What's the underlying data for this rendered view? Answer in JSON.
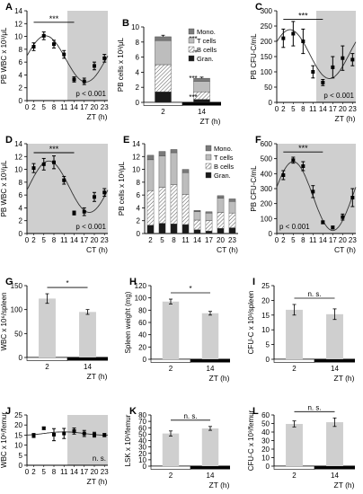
{
  "chart_data": [
    {
      "panel": "A",
      "type": "line",
      "ylabel": "PB WBC x 10³/μL",
      "xlabel": "ZT (h)",
      "ylim": [
        0,
        14
      ],
      "yticks": [
        0,
        2,
        4,
        6,
        8,
        10,
        12,
        14
      ],
      "xlim": [
        0,
        24
      ],
      "xticks": [
        0,
        2,
        5,
        8,
        11,
        14,
        17,
        20,
        23
      ],
      "shade": [
        [
          12,
          24
        ]
      ],
      "light_bar": false,
      "x": [
        2,
        5,
        8,
        11,
        14,
        17,
        20,
        23
      ],
      "y": [
        8.4,
        10.1,
        8.8,
        7.2,
        3.3,
        3.0,
        5.4,
        6.6
      ],
      "err": [
        0.6,
        0.6,
        0.6,
        0.6,
        0.4,
        0.5,
        0.6,
        0.6
      ],
      "curve": {
        "mean": 6.5,
        "amp": 3.6,
        "peak": 5.5,
        "period": 24
      },
      "sig": {
        "label": "***",
        "x1": 2,
        "x2": 14,
        "y": 12.2
      },
      "pval": "p < 0.001",
      "pval_pos": "bottom-right"
    },
    {
      "panel": "B",
      "type": "bar",
      "ylabel": "PB cells x 10³/μL",
      "xlabel": "ZT (h)",
      "ylim": [
        0,
        10
      ],
      "yticks": [
        0,
        2,
        4,
        6,
        8,
        10
      ],
      "categories": [
        "2",
        "14"
      ],
      "stack_order": [
        "Gran.",
        "B cells",
        "T cells",
        "Mono."
      ],
      "legend": [
        "Mono.",
        "T cells",
        "B cells",
        "Gran."
      ],
      "legend_pos": "top-right",
      "series": [
        {
          "name": "Gran.",
          "values": [
            1.4,
            0.4
          ]
        },
        {
          "name": "B cells",
          "values": [
            3.6,
            1.0
          ]
        },
        {
          "name": "T cells",
          "values": [
            3.2,
            1.4
          ]
        },
        {
          "name": "Mono.",
          "values": [
            0.5,
            0.4
          ]
        }
      ],
      "total_err": [
        0.2,
        0.15
      ],
      "stars": [
        "***",
        "***",
        "***",
        "***"
      ],
      "light_bar": true
    },
    {
      "panel": "C",
      "type": "line",
      "ylabel": "PB CFU-C/mL",
      "xlabel": "ZT (h)",
      "ylim": [
        0,
        300
      ],
      "yticks": [
        0,
        50,
        100,
        150,
        200,
        250,
        300
      ],
      "xlim": [
        0,
        24
      ],
      "xticks": [
        0,
        2,
        5,
        8,
        11,
        14,
        17,
        20,
        23
      ],
      "shade": [
        [
          12,
          24
        ]
      ],
      "light_bar": false,
      "x": [
        2,
        5,
        8,
        11,
        14,
        17,
        20,
        23
      ],
      "y": [
        210,
        225,
        200,
        100,
        65,
        115,
        145,
        140
      ],
      "err": [
        30,
        40,
        40,
        20,
        10,
        35,
        40,
        20
      ],
      "curve": {
        "mean": 158,
        "amp": 80,
        "peak": 4,
        "period": 24
      },
      "sig": {
        "label": "***",
        "x1": 2,
        "x2": 14,
        "y": 272
      },
      "pval": "p < 0.001",
      "pval_pos": "bottom-right"
    },
    {
      "panel": "D",
      "type": "line",
      "ylabel": "PB WBC x 10³/μL",
      "xlabel": "CT (h)",
      "ylim": [
        0,
        14
      ],
      "yticks": [
        0,
        2,
        4,
        6,
        8,
        10,
        12,
        14
      ],
      "xlim": [
        0,
        24
      ],
      "xticks": [
        0,
        2,
        5,
        8,
        11,
        14,
        17,
        20,
        23
      ],
      "shade": [
        [
          0,
          24
        ]
      ],
      "light_bar": false,
      "x": [
        2,
        5,
        8,
        11,
        14,
        17,
        20,
        23
      ],
      "y": [
        10.2,
        10.8,
        11.1,
        8.3,
        3.2,
        3.4,
        5.7,
        6.4
      ],
      "err": [
        0.7,
        0.9,
        1.0,
        0.6,
        0.3,
        0.6,
        0.7,
        0.6
      ],
      "curve": {
        "mean": 7.3,
        "amp": 4.0,
        "peak": 6.5,
        "period": 24
      },
      "sig": {
        "label": "***",
        "x1": 2,
        "x2": 14,
        "y": 12.6
      },
      "pval": "p < 0.001",
      "pval_pos": "bottom-right"
    },
    {
      "panel": "E",
      "type": "bar",
      "ylabel": "PB cells x 10³/μL",
      "xlabel": "CT (h)",
      "ylim": [
        0,
        14
      ],
      "yticks": [
        0,
        2,
        4,
        6,
        8,
        10,
        12,
        14
      ],
      "categories": [
        "2",
        "5",
        "8",
        "11",
        "14",
        "17",
        "20",
        "23"
      ],
      "stack_order": [
        "Gran.",
        "B cells",
        "T cells",
        "Mono."
      ],
      "legend": [
        "Mono.",
        "T cells",
        "B cells",
        "Gran."
      ],
      "legend_pos": "top-right",
      "series": [
        {
          "name": "Gran.",
          "values": [
            1.3,
            1.6,
            1.5,
            1.4,
            0.6,
            0.4,
            0.8,
            0.9
          ]
        },
        {
          "name": "B cells",
          "values": [
            5.4,
            5.6,
            6.1,
            4.7,
            1.5,
            1.6,
            2.5,
            2.3
          ]
        },
        {
          "name": "T cells",
          "values": [
            4.8,
            4.9,
            5.0,
            3.4,
            1.3,
            1.2,
            2.2,
            1.8
          ]
        },
        {
          "name": "Mono.",
          "values": [
            0.7,
            0.7,
            0.5,
            0.5,
            0.2,
            0.2,
            0.4,
            0.4
          ]
        }
      ],
      "light_bar": false
    },
    {
      "panel": "F",
      "type": "line",
      "ylabel": "PB CFU-C/mL",
      "xlabel": "CT (h)",
      "ylim": [
        0,
        600
      ],
      "yticks": [
        0,
        100,
        200,
        300,
        400,
        500,
        600
      ],
      "xlim": [
        0,
        24
      ],
      "xticks": [
        0,
        2,
        5,
        8,
        11,
        14,
        17,
        20,
        23
      ],
      "shade": [
        [
          0,
          24
        ]
      ],
      "light_bar": false,
      "x": [
        2,
        5,
        8,
        11,
        14,
        17,
        20,
        23
      ],
      "y": [
        390,
        490,
        450,
        280,
        75,
        40,
        110,
        240
      ],
      "err": [
        30,
        20,
        30,
        40,
        10,
        10,
        20,
        60
      ],
      "curve": {
        "mean": 250,
        "amp": 230,
        "peak": 5,
        "period": 24
      },
      "sig": {
        "label": "***",
        "x1": 2,
        "x2": 14,
        "y": 545
      },
      "pval": "p < 0.001",
      "pval_pos": "bottom-left"
    },
    {
      "panel": "G",
      "type": "bar",
      "ylabel": "WBC x 10⁶/spleen",
      "xlabel": "ZT (h)",
      "ylim": [
        0,
        150
      ],
      "yticks": [
        0,
        50,
        100,
        150
      ],
      "categories": [
        "2",
        "14"
      ],
      "values": [
        123,
        95
      ],
      "err": [
        10,
        5
      ],
      "sig": {
        "label": "*"
      },
      "light_bar": true
    },
    {
      "panel": "H",
      "type": "bar",
      "ylabel": "Spleen weight (mg)",
      "xlabel": "ZT (h)",
      "ylim": [
        0,
        120
      ],
      "yticks": [
        0,
        20,
        40,
        60,
        80,
        100,
        120
      ],
      "categories": [
        "2",
        "14"
      ],
      "values": [
        94,
        75
      ],
      "err": [
        4,
        3
      ],
      "sig": {
        "label": "*"
      },
      "light_bar": true
    },
    {
      "panel": "I",
      "type": "bar",
      "ylabel": "CFU-C x 10³/spleen",
      "xlabel": "ZT (h)",
      "ylim": [
        0,
        25
      ],
      "yticks": [
        0,
        5,
        10,
        15,
        20,
        25
      ],
      "categories": [
        "2",
        "14"
      ],
      "values": [
        16.8,
        15.3
      ],
      "err": [
        1.8,
        1.8
      ],
      "sig": {
        "label": "n. s."
      },
      "light_bar": true
    },
    {
      "panel": "J",
      "type": "line",
      "ylabel": "WBC x 10⁶/femur",
      "xlabel": "ZT (h)",
      "ylim": [
        0,
        25
      ],
      "yticks": [
        0,
        5,
        10,
        15,
        20,
        25
      ],
      "xlim": [
        0,
        24
      ],
      "xticks": [
        0,
        2,
        5,
        8,
        11,
        14,
        17,
        20,
        23
      ],
      "shade": [
        [
          12,
          24
        ]
      ],
      "light_bar": false,
      "x": [
        2,
        5,
        8,
        11,
        14,
        17,
        20,
        23
      ],
      "y": [
        14.8,
        18.4,
        15.2,
        15.8,
        17.0,
        15.8,
        15.2,
        15.0
      ],
      "err": [
        1.0,
        0.6,
        3.0,
        2.5,
        1.5,
        1.5,
        1.2,
        0.8
      ],
      "curve": {
        "mean": 15.8,
        "amp": 0.8,
        "peak": 11,
        "period": 24
      },
      "pval": "n. s.",
      "pval_pos": "bottom-right"
    },
    {
      "panel": "K",
      "type": "bar",
      "ylabel": "LSK x 10³/femur",
      "xlabel": "ZT (h)",
      "ylim": [
        0,
        80
      ],
      "yticks": [
        0,
        10,
        20,
        30,
        40,
        50,
        60,
        70,
        80
      ],
      "categories": [
        "2",
        "14"
      ],
      "values": [
        51,
        59
      ],
      "err": [
        4,
        3
      ],
      "sig": {
        "label": "n. s."
      },
      "light_bar": true
    },
    {
      "panel": "L",
      "type": "bar",
      "ylabel": "CFU-C x 10³/femur",
      "xlabel": "ZT (h)",
      "ylim": [
        0,
        60
      ],
      "yticks": [
        0,
        10,
        20,
        30,
        40,
        50,
        60
      ],
      "categories": [
        "2",
        "14"
      ],
      "values": [
        49.5,
        51.5
      ],
      "err": [
        3.5,
        5
      ],
      "sig": {
        "label": "n. s."
      },
      "light_bar": true
    }
  ],
  "colors": {
    "shade": "#cfcfcf",
    "bar": "#cfcfcf",
    "gran": "#1a1a1a",
    "bcells": "#ffffff",
    "tcells": "#bdbdbd",
    "mono": "#7a7a7a",
    "ink": "#000000"
  }
}
